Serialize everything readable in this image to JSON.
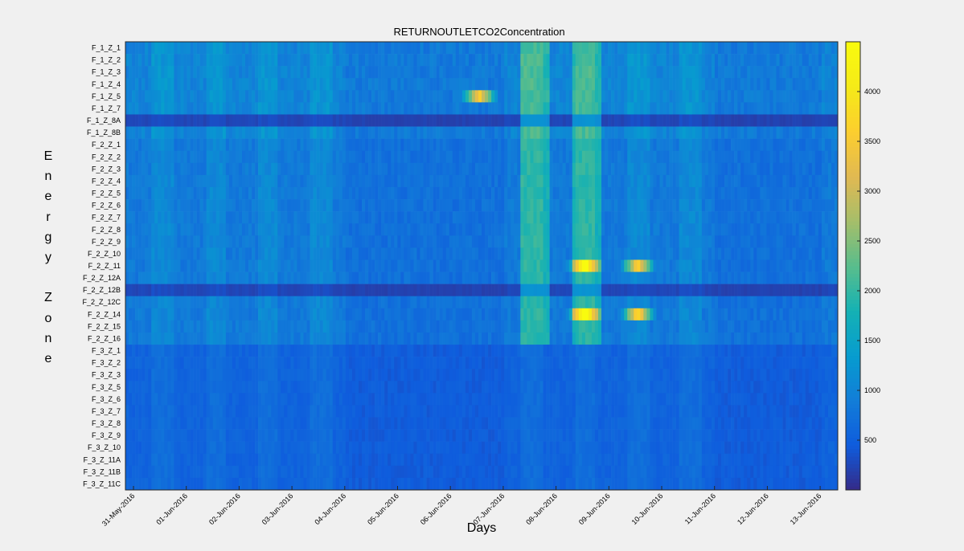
{
  "chart_data": {
    "type": "heatmap",
    "title": "RETURNOUTLETCO2Concentration",
    "xlabel": "Days",
    "ylabel": [
      "E",
      "n",
      "e",
      "r",
      "g",
      "y",
      "",
      "Z",
      "o",
      "n",
      "e"
    ],
    "x_ticks": [
      "31-May-2016",
      "01-Jun-2016",
      "02-Jun-2016",
      "03-Jun-2016",
      "04-Jun-2016",
      "05-Jun-2016",
      "06-Jun-2016",
      "07-Jun-2016",
      "08-Jun-2016",
      "09-Jun-2016",
      "10-Jun-2016",
      "11-Jun-2016",
      "12-Jun-2016",
      "13-Jun-2016"
    ],
    "zones": [
      "F_1_Z_1",
      "F_1_Z_2",
      "F_1_Z_3",
      "F_1_Z_4",
      "F_1_Z_5",
      "F_1_Z_7",
      "F_1_Z_8A",
      "F_1_Z_8B",
      "F_2_Z_1",
      "F_2_Z_2",
      "F_2_Z_3",
      "F_2_Z_4",
      "F_2_Z_5",
      "F_2_Z_6",
      "F_2_Z_7",
      "F_2_Z_8",
      "F_2_Z_9",
      "F_2_Z_10",
      "F_2_Z_11",
      "F_2_Z_12A",
      "F_2_Z_12B",
      "F_2_Z_12C",
      "F_2_Z_14",
      "F_2_Z_15",
      "F_2_Z_16",
      "F_3_Z_1",
      "F_3_Z_2",
      "F_3_Z_3",
      "F_3_Z_5",
      "F_3_Z_6",
      "F_3_Z_7",
      "F_3_Z_8",
      "F_3_Z_9",
      "F_3_Z_10",
      "F_3_Z_11A",
      "F_3_Z_11B",
      "F_3_Z_11C"
    ],
    "colorbar_ticks": [
      500,
      1000,
      1500,
      2000,
      2500,
      3000,
      3500,
      4000
    ],
    "clim": [
      0,
      4500
    ],
    "colormap": "parula",
    "day_range": [
      "31-May-2016",
      "14-Jun-2016"
    ],
    "zone_groups": [
      {
        "zones": "F_1_Z_1 – F_1_Z_7",
        "typical": 1000
      },
      {
        "zones": "F_1_Z_8A, F_2_Z_12B",
        "typical": 250
      },
      {
        "zones": "F_2_Z_1 – F_2_Z_16",
        "typical": 850
      },
      {
        "zones": "F_3_Z_1 – F_3_Z_11C",
        "typical": 550
      }
    ],
    "peaks": [
      {
        "zone": "F_1_Z_5",
        "day": "06-Jun-2016",
        "value": 3600
      },
      {
        "zone": "F_2_Z_11",
        "day": "08-Jun-2016",
        "value": 3800
      },
      {
        "zone": "F_2_Z_14",
        "day": "08-Jun-2016",
        "value": 4000
      },
      {
        "zone": "F_2_Z_11",
        "day": "09-Jun-2016",
        "value": 3700
      },
      {
        "zone": "F_2_Z_14",
        "day": "09-Jun-2016",
        "value": 3900
      }
    ]
  }
}
